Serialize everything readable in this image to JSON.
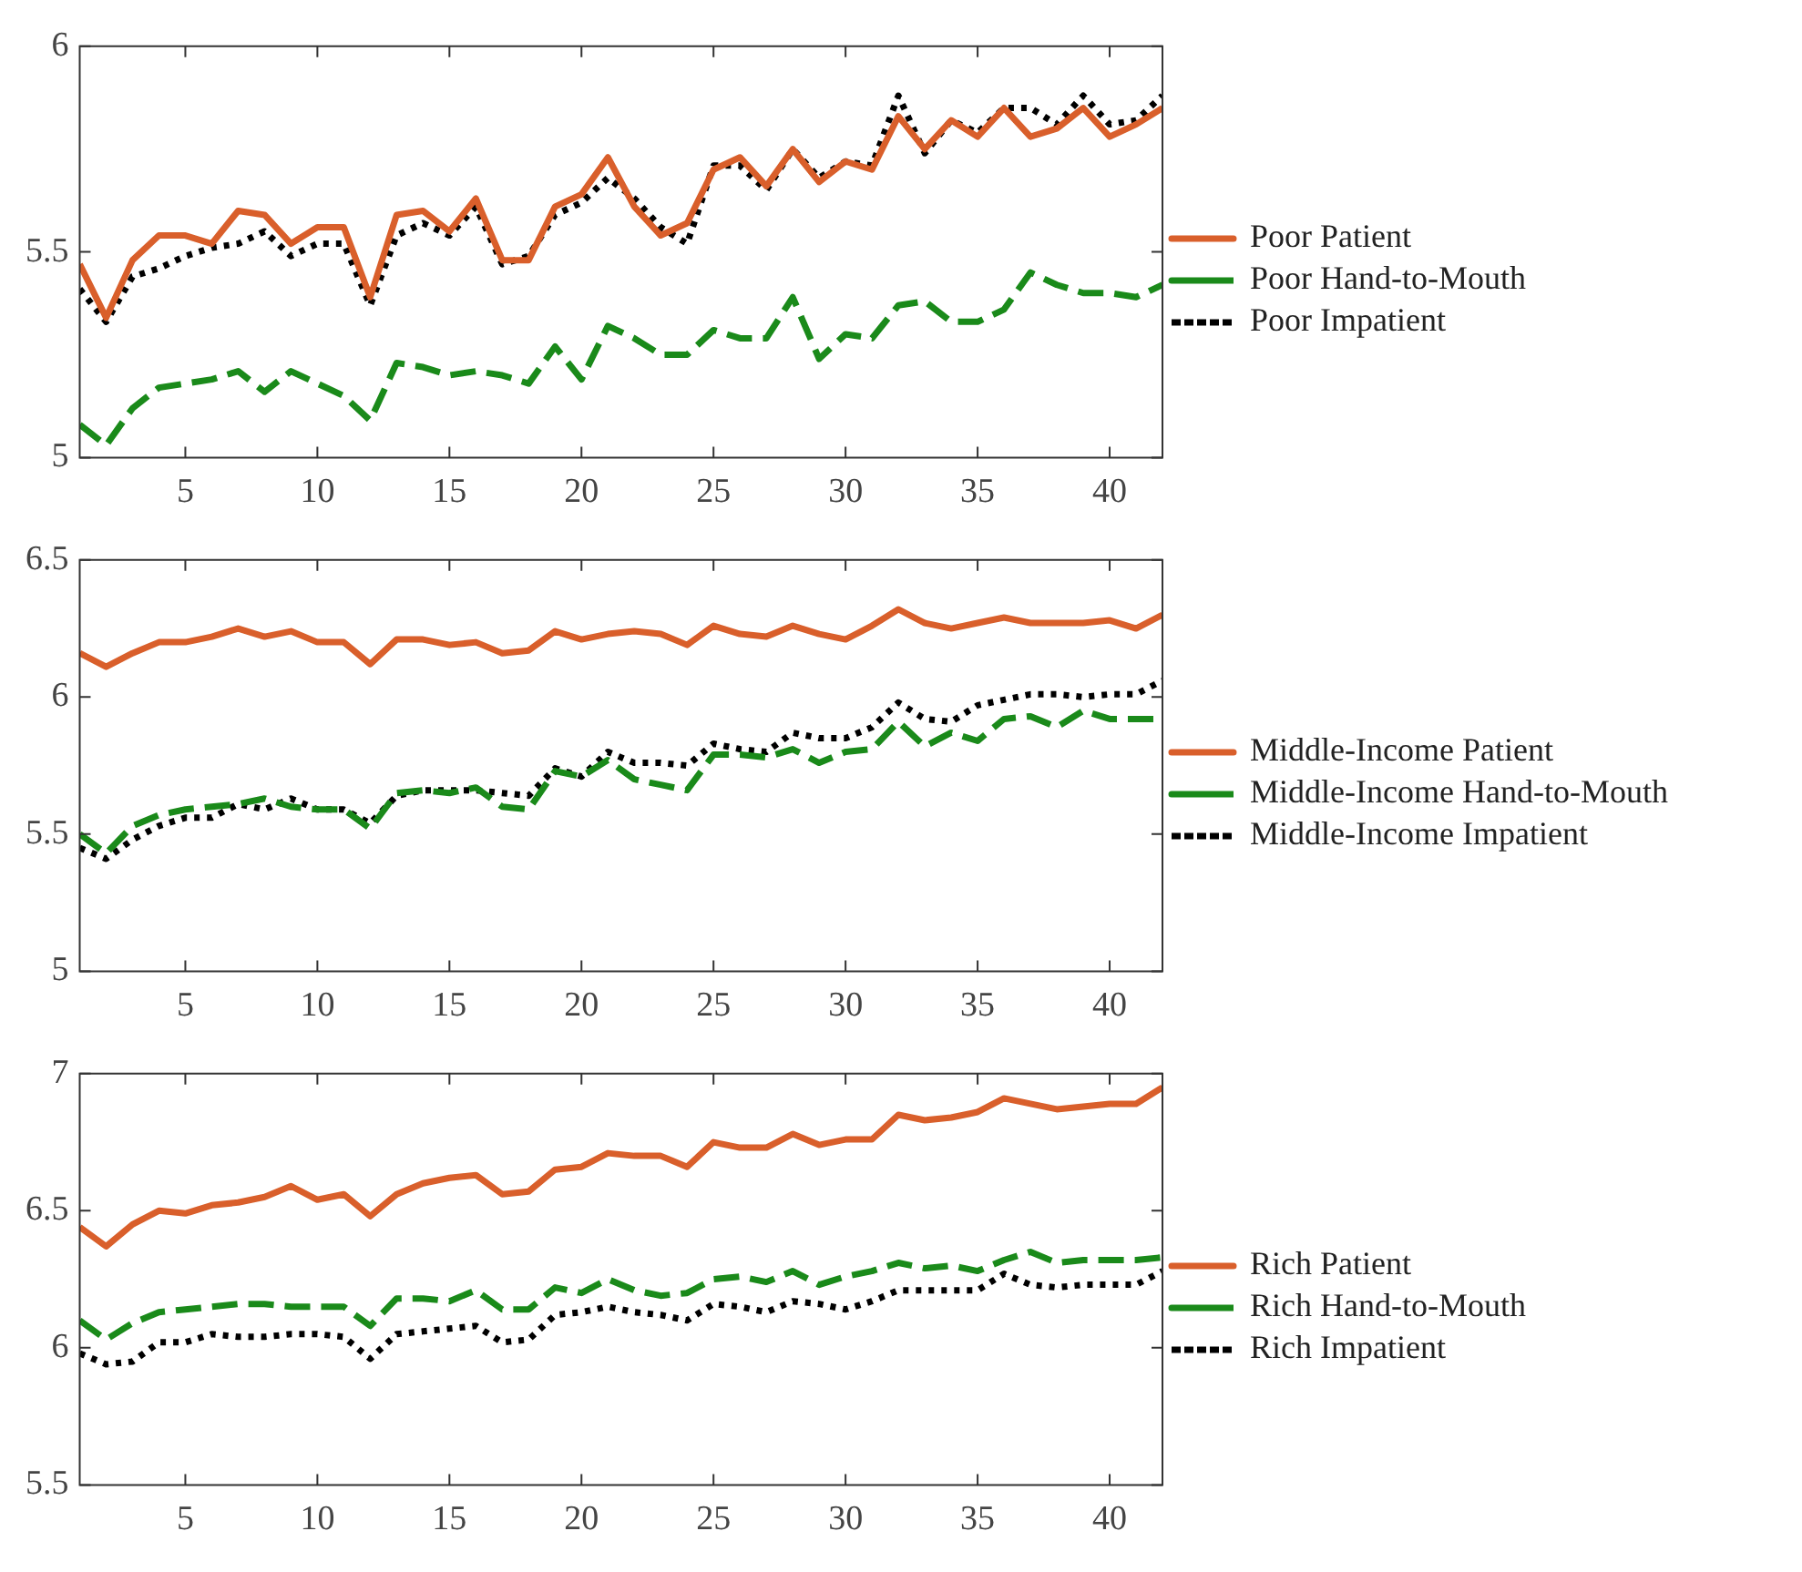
{
  "chart_data": [
    {
      "type": "line",
      "x": [
        1,
        2,
        3,
        4,
        5,
        6,
        7,
        8,
        9,
        10,
        11,
        12,
        13,
        14,
        15,
        16,
        17,
        18,
        19,
        20,
        21,
        22,
        23,
        24,
        25,
        26,
        27,
        28,
        29,
        30,
        31,
        32,
        33,
        34,
        35,
        36,
        37,
        38,
        39,
        40,
        41,
        42
      ],
      "xlim": [
        1,
        42
      ],
      "xticks": [
        5,
        10,
        15,
        20,
        25,
        30,
        35,
        40
      ],
      "ylim": [
        5,
        6
      ],
      "yticks": [
        5,
        5.5,
        6
      ],
      "grid": false,
      "legend": "right",
      "marker": "none",
      "series": [
        {
          "name": "Poor Patient",
          "color": "#d95f2b",
          "line_style": "solid",
          "values": [
            5.47,
            5.34,
            5.48,
            5.54,
            5.54,
            5.52,
            5.6,
            5.59,
            5.52,
            5.56,
            5.56,
            5.39,
            5.59,
            5.6,
            5.55,
            5.63,
            5.48,
            5.48,
            5.61,
            5.64,
            5.73,
            5.61,
            5.54,
            5.57,
            5.7,
            5.73,
            5.66,
            5.75,
            5.67,
            5.72,
            5.7,
            5.83,
            5.75,
            5.82,
            5.78,
            5.85,
            5.78,
            5.8,
            5.85,
            5.78,
            5.81,
            5.85
          ]
        },
        {
          "name": "Poor Hand-to-Mouth",
          "color": "#1a8a1a",
          "line_style": "dashed",
          "values": [
            5.08,
            5.03,
            5.12,
            5.17,
            5.18,
            5.19,
            5.21,
            5.16,
            5.21,
            5.18,
            5.15,
            5.09,
            5.23,
            5.22,
            5.2,
            5.21,
            5.2,
            5.18,
            5.27,
            5.19,
            5.32,
            5.29,
            5.25,
            5.25,
            5.31,
            5.29,
            5.29,
            5.39,
            5.24,
            5.3,
            5.29,
            5.37,
            5.38,
            5.33,
            5.33,
            5.36,
            5.45,
            5.42,
            5.4,
            5.4,
            5.39,
            5.42
          ]
        },
        {
          "name": "Poor Impatient",
          "color": "#000000",
          "line_style": "dotted",
          "values": [
            5.41,
            5.33,
            5.44,
            5.46,
            5.49,
            5.51,
            5.52,
            5.55,
            5.49,
            5.52,
            5.52,
            5.37,
            5.54,
            5.57,
            5.54,
            5.61,
            5.47,
            5.49,
            5.59,
            5.62,
            5.68,
            5.63,
            5.56,
            5.52,
            5.71,
            5.71,
            5.65,
            5.75,
            5.68,
            5.72,
            5.71,
            5.88,
            5.74,
            5.82,
            5.79,
            5.85,
            5.85,
            5.81,
            5.88,
            5.81,
            5.82,
            5.88
          ]
        }
      ]
    },
    {
      "type": "line",
      "x": [
        1,
        2,
        3,
        4,
        5,
        6,
        7,
        8,
        9,
        10,
        11,
        12,
        13,
        14,
        15,
        16,
        17,
        18,
        19,
        20,
        21,
        22,
        23,
        24,
        25,
        26,
        27,
        28,
        29,
        30,
        31,
        32,
        33,
        34,
        35,
        36,
        37,
        38,
        39,
        40,
        41,
        42
      ],
      "xlim": [
        1,
        42
      ],
      "xticks": [
        5,
        10,
        15,
        20,
        25,
        30,
        35,
        40
      ],
      "ylim": [
        5,
        6.5
      ],
      "yticks": [
        5,
        5.5,
        6,
        6.5
      ],
      "grid": false,
      "legend": "right",
      "marker": "none",
      "series": [
        {
          "name": "Middle-Income Patient",
          "color": "#d95f2b",
          "line_style": "solid",
          "values": [
            6.16,
            6.11,
            6.16,
            6.2,
            6.2,
            6.22,
            6.25,
            6.22,
            6.24,
            6.2,
            6.2,
            6.12,
            6.21,
            6.21,
            6.19,
            6.2,
            6.16,
            6.17,
            6.24,
            6.21,
            6.23,
            6.24,
            6.23,
            6.19,
            6.26,
            6.23,
            6.22,
            6.26,
            6.23,
            6.21,
            6.26,
            6.32,
            6.27,
            6.25,
            6.27,
            6.29,
            6.27,
            6.27,
            6.27,
            6.28,
            6.25,
            6.3
          ]
        },
        {
          "name": "Middle-Income Hand-to-Mouth",
          "color": "#1a8a1a",
          "line_style": "dashed",
          "values": [
            5.5,
            5.43,
            5.53,
            5.57,
            5.59,
            5.6,
            5.61,
            5.63,
            5.6,
            5.59,
            5.59,
            5.52,
            5.65,
            5.66,
            5.65,
            5.67,
            5.6,
            5.59,
            5.73,
            5.71,
            5.77,
            5.7,
            5.68,
            5.66,
            5.79,
            5.79,
            5.78,
            5.81,
            5.76,
            5.8,
            5.81,
            5.91,
            5.82,
            5.87,
            5.84,
            5.92,
            5.93,
            5.89,
            5.95,
            5.92,
            5.92,
            5.92
          ]
        },
        {
          "name": "Middle-Income Impatient",
          "color": "#000000",
          "line_style": "dotted",
          "values": [
            5.45,
            5.41,
            5.48,
            5.53,
            5.56,
            5.56,
            5.61,
            5.59,
            5.63,
            5.59,
            5.59,
            5.54,
            5.64,
            5.66,
            5.66,
            5.66,
            5.65,
            5.64,
            5.74,
            5.71,
            5.8,
            5.76,
            5.76,
            5.75,
            5.83,
            5.81,
            5.8,
            5.87,
            5.85,
            5.85,
            5.89,
            5.98,
            5.92,
            5.91,
            5.97,
            5.99,
            6.01,
            6.01,
            6.0,
            6.01,
            6.01,
            6.06
          ]
        }
      ]
    },
    {
      "type": "line",
      "x": [
        1,
        2,
        3,
        4,
        5,
        6,
        7,
        8,
        9,
        10,
        11,
        12,
        13,
        14,
        15,
        16,
        17,
        18,
        19,
        20,
        21,
        22,
        23,
        24,
        25,
        26,
        27,
        28,
        29,
        30,
        31,
        32,
        33,
        34,
        35,
        36,
        37,
        38,
        39,
        40,
        41,
        42
      ],
      "xlim": [
        1,
        42
      ],
      "xticks": [
        5,
        10,
        15,
        20,
        25,
        30,
        35,
        40
      ],
      "ylim": [
        5.5,
        7
      ],
      "yticks": [
        5.5,
        6,
        6.5,
        7
      ],
      "grid": false,
      "legend": "right",
      "marker": "none",
      "series": [
        {
          "name": "Rich Patient",
          "color": "#d95f2b",
          "line_style": "solid",
          "values": [
            6.44,
            6.37,
            6.45,
            6.5,
            6.49,
            6.52,
            6.53,
            6.55,
            6.59,
            6.54,
            6.56,
            6.48,
            6.56,
            6.6,
            6.62,
            6.63,
            6.56,
            6.57,
            6.65,
            6.66,
            6.71,
            6.7,
            6.7,
            6.66,
            6.75,
            6.73,
            6.73,
            6.78,
            6.74,
            6.76,
            6.76,
            6.85,
            6.83,
            6.84,
            6.86,
            6.91,
            6.89,
            6.87,
            6.88,
            6.89,
            6.89,
            6.95
          ]
        },
        {
          "name": "Rich Hand-to-Mouth",
          "color": "#1a8a1a",
          "line_style": "dashed",
          "values": [
            6.1,
            6.03,
            6.09,
            6.13,
            6.14,
            6.15,
            6.16,
            6.16,
            6.15,
            6.15,
            6.15,
            6.08,
            6.18,
            6.18,
            6.17,
            6.21,
            6.14,
            6.14,
            6.22,
            6.2,
            6.25,
            6.21,
            6.19,
            6.2,
            6.25,
            6.26,
            6.24,
            6.28,
            6.23,
            6.26,
            6.28,
            6.31,
            6.29,
            6.3,
            6.28,
            6.32,
            6.35,
            6.31,
            6.32,
            6.32,
            6.32,
            6.33
          ]
        },
        {
          "name": "Rich Impatient",
          "color": "#000000",
          "line_style": "dotted",
          "values": [
            5.98,
            5.94,
            5.95,
            6.02,
            6.02,
            6.05,
            6.04,
            6.04,
            6.05,
            6.05,
            6.04,
            5.96,
            6.05,
            6.06,
            6.07,
            6.08,
            6.02,
            6.03,
            6.12,
            6.13,
            6.15,
            6.13,
            6.12,
            6.1,
            6.16,
            6.15,
            6.13,
            6.17,
            6.16,
            6.14,
            6.17,
            6.21,
            6.21,
            6.21,
            6.21,
            6.27,
            6.23,
            6.22,
            6.23,
            6.23,
            6.23,
            6.28
          ]
        }
      ]
    }
  ]
}
